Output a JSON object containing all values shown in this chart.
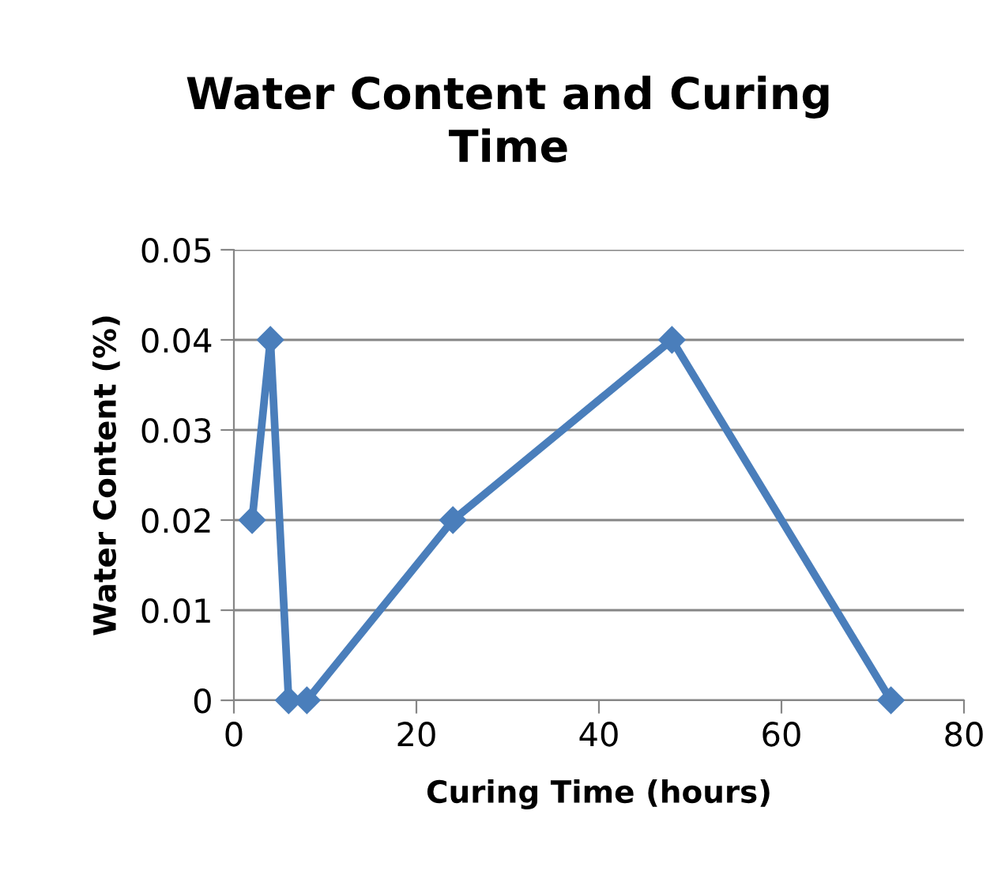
{
  "chart_data": {
    "type": "line",
    "title": "Water Content and Curing Time",
    "xlabel": "Curing Time (hours)",
    "ylabel": "Water Content (%)",
    "x": [
      2,
      4,
      6,
      8,
      24,
      48,
      72
    ],
    "series": [
      {
        "color": "#4a7ebb",
        "values": [
          0.02,
          0.04,
          0,
          0,
          0.02,
          0.04,
          0
        ]
      }
    ],
    "xlim": [
      0,
      80
    ],
    "xticks": [
      0,
      20,
      40,
      60,
      80
    ],
    "ylim": [
      0,
      0.05
    ],
    "yticks": [
      0,
      0.01,
      0.02,
      0.03,
      0.04,
      0.05
    ],
    "grid": "y",
    "legend": false,
    "marker": "diamond",
    "line_style": "solid"
  }
}
